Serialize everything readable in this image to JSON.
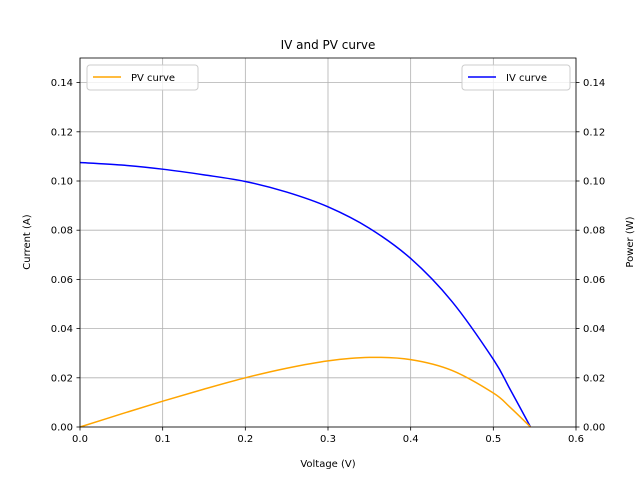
{
  "chart_data": {
    "type": "line",
    "title": "IV and PV curve",
    "xlabel": "Voltage (V)",
    "ylabel_left": "Current (A)",
    "ylabel_right": "Power (W)",
    "xlim": [
      0.0,
      0.6
    ],
    "ylim_left": [
      0.0,
      0.15
    ],
    "ylim_right": [
      0.0,
      0.15
    ],
    "x_ticks": [
      "0.0",
      "0.1",
      "0.2",
      "0.3",
      "0.4",
      "0.5",
      "0.6"
    ],
    "y_ticks_left": [
      "0.00",
      "0.02",
      "0.04",
      "0.06",
      "0.08",
      "0.10",
      "0.12",
      "0.14"
    ],
    "y_ticks_right": [
      "0.00",
      "0.02",
      "0.04",
      "0.06",
      "0.08",
      "0.10",
      "0.12",
      "0.14"
    ],
    "grid": true,
    "series": [
      {
        "name": "IV curve",
        "axis": "left",
        "color": "#0000ff",
        "legend_position": "top-right",
        "x": [
          0.0,
          0.05,
          0.1,
          0.15,
          0.2,
          0.25,
          0.3,
          0.35,
          0.4,
          0.45,
          0.5,
          0.52,
          0.545
        ],
        "values": [
          0.1075,
          0.1065,
          0.1048,
          0.1025,
          0.0998,
          0.0955,
          0.0895,
          0.0808,
          0.0685,
          0.051,
          0.0275,
          0.0155,
          0.0
        ]
      },
      {
        "name": "PV curve",
        "axis": "right",
        "color": "#ffa500",
        "legend_position": "top-left",
        "x": [
          0.0,
          0.05,
          0.1,
          0.15,
          0.2,
          0.25,
          0.3,
          0.35,
          0.4,
          0.45,
          0.5,
          0.52,
          0.545
        ],
        "values": [
          0.0,
          0.0053,
          0.0105,
          0.0154,
          0.02,
          0.0239,
          0.0269,
          0.0283,
          0.0274,
          0.023,
          0.0138,
          0.0081,
          0.0
        ]
      }
    ]
  }
}
